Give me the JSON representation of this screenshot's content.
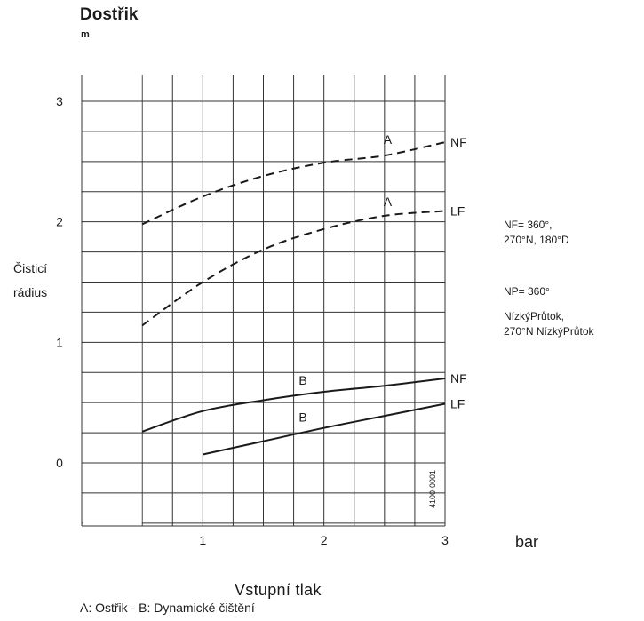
{
  "header": {
    "title": "Dostřik",
    "unit": "m"
  },
  "y_axis_label": [
    "Čisticí",
    "rádius"
  ],
  "x_axis_title": "Vstupní  tlak",
  "x_unit": "bar",
  "caption": "A: Ostřik - B: Dynamické čištění",
  "side_notes": {
    "nf": [
      "NF= 360°,",
      "270°N, 180°D"
    ],
    "np": [
      "NP=  360°",
      "NízkýPrůtok,",
      "270°N NízkýPrůtok"
    ]
  },
  "code_label": "4100-0001",
  "colors": {
    "line": "#1a1a1a",
    "grid": "#333333",
    "background": "#ffffff"
  },
  "chart_data": {
    "type": "line",
    "title": "Dostřik",
    "ylabel": "Čisticí rádius",
    "xlabel": "Vstupní  tlak",
    "xlim": [
      0,
      3
    ],
    "ylim": [
      -0.5,
      3.1
    ],
    "xticks": [
      "1",
      "2",
      "3"
    ],
    "yticks": [
      "0",
      "1",
      "2",
      "3"
    ],
    "grid": true,
    "series": [
      {
        "name": "A",
        "end_label": "NF",
        "style": "dashed",
        "x": [
          0.5,
          1.0,
          1.5,
          2.0,
          2.5,
          3.0
        ],
        "y": [
          1.98,
          2.21,
          2.38,
          2.49,
          2.55,
          2.66
        ]
      },
      {
        "name": "A",
        "end_label": "LF",
        "style": "dashed",
        "x": [
          0.5,
          1.0,
          1.5,
          2.0,
          2.5,
          3.0
        ],
        "y": [
          1.14,
          1.5,
          1.77,
          1.94,
          2.05,
          2.09
        ]
      },
      {
        "name": "B",
        "end_label": "NF",
        "style": "solid",
        "x": [
          0.5,
          1.0,
          1.5,
          2.0,
          2.5,
          3.0
        ],
        "y": [
          0.26,
          0.43,
          0.52,
          0.59,
          0.64,
          0.7
        ]
      },
      {
        "name": "B",
        "end_label": "LF",
        "style": "solid",
        "x": [
          1.0,
          1.5,
          2.0,
          2.5,
          3.0
        ],
        "y": [
          0.07,
          0.18,
          0.29,
          0.39,
          0.49
        ]
      }
    ]
  }
}
